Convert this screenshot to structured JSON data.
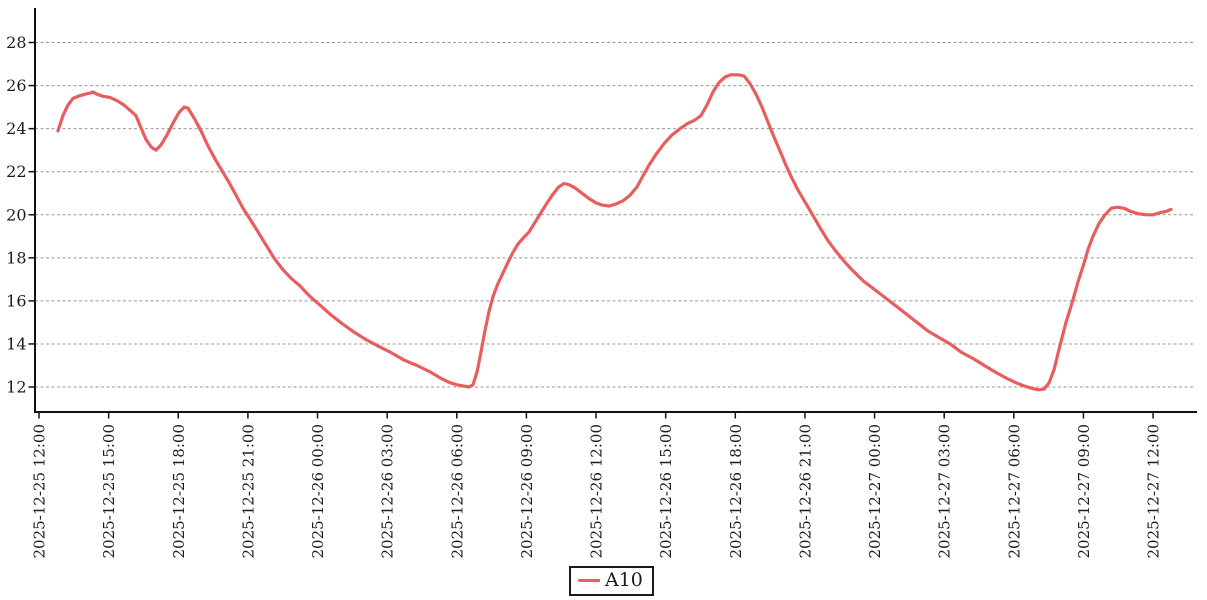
{
  "chart_data": {
    "type": "line",
    "title": "",
    "xlabel": "",
    "ylabel": "",
    "x_axis": {
      "unit": "datetime",
      "tick_interval": "3 hours",
      "tick_hours": [
        0,
        3,
        6,
        9,
        12,
        15,
        18,
        21,
        24,
        27,
        30,
        33,
        36,
        39,
        42,
        45,
        48
      ],
      "tick_labels": [
        "2025-12-25 12:00",
        "2025-12-25 15:00",
        "2025-12-25 18:00",
        "2025-12-25 21:00",
        "2025-12-26 00:00",
        "2025-12-26 03:00",
        "2025-12-26 06:00",
        "2025-12-26 09:00",
        "2025-12-26 12:00",
        "2025-12-26 15:00",
        "2025-12-26 18:00",
        "2025-12-26 21:00",
        "2025-12-27 00:00",
        "2025-12-27 03:00",
        "2025-12-27 06:00",
        "2025-12-27 09:00",
        "2025-12-27 12:00"
      ],
      "label_rotation_deg": 90,
      "range_hours": [
        -0.17,
        49.9
      ]
    },
    "y_axis": {
      "tick_values": [
        12,
        14,
        16,
        18,
        20,
        22,
        24,
        26,
        28
      ],
      "tick_labels": [
        "12",
        "14",
        "16",
        "18",
        "20",
        "22",
        "24",
        "26",
        "28"
      ],
      "range": [
        10.85,
        29.6
      ],
      "grid": "dashed horizontal"
    },
    "legend": {
      "position": "bottom-center",
      "bordered": true,
      "entries": [
        {
          "label": "A10",
          "color": "#e85d5d"
        }
      ]
    },
    "series": [
      {
        "name": "A10",
        "color": "#e85d5d",
        "points_format": "[hours since 2025-12-25 12:00, value]",
        "points": [
          [
            0.82,
            23.9
          ],
          [
            1.03,
            24.6
          ],
          [
            1.25,
            25.1
          ],
          [
            1.46,
            25.4
          ],
          [
            1.68,
            25.5
          ],
          [
            1.98,
            25.6
          ],
          [
            2.2,
            25.65
          ],
          [
            2.33,
            25.7
          ],
          [
            2.5,
            25.6
          ],
          [
            2.76,
            25.5
          ],
          [
            3.06,
            25.45
          ],
          [
            3.36,
            25.3
          ],
          [
            3.66,
            25.1
          ],
          [
            3.92,
            24.85
          ],
          [
            4.18,
            24.6
          ],
          [
            4.39,
            24.05
          ],
          [
            4.61,
            23.5
          ],
          [
            4.83,
            23.15
          ],
          [
            5.04,
            23.0
          ],
          [
            5.26,
            23.25
          ],
          [
            5.51,
            23.7
          ],
          [
            5.77,
            24.25
          ],
          [
            6.03,
            24.75
          ],
          [
            6.25,
            25.0
          ],
          [
            6.42,
            24.95
          ],
          [
            6.68,
            24.5
          ],
          [
            6.98,
            23.9
          ],
          [
            7.28,
            23.2
          ],
          [
            7.58,
            22.6
          ],
          [
            7.88,
            22.05
          ],
          [
            8.19,
            21.5
          ],
          [
            8.49,
            20.9
          ],
          [
            8.79,
            20.3
          ],
          [
            9.09,
            19.8
          ],
          [
            9.44,
            19.2
          ],
          [
            9.78,
            18.6
          ],
          [
            10.12,
            18.0
          ],
          [
            10.47,
            17.5
          ],
          [
            10.86,
            17.05
          ],
          [
            11.24,
            16.7
          ],
          [
            11.68,
            16.2
          ],
          [
            12.11,
            15.8
          ],
          [
            12.58,
            15.35
          ],
          [
            13.05,
            14.95
          ],
          [
            13.57,
            14.55
          ],
          [
            14.09,
            14.2
          ],
          [
            14.61,
            13.9
          ],
          [
            15.17,
            13.6
          ],
          [
            15.73,
            13.25
          ],
          [
            16.29,
            13.0
          ],
          [
            16.85,
            12.7
          ],
          [
            17.32,
            12.4
          ],
          [
            17.71,
            12.2
          ],
          [
            18.01,
            12.1
          ],
          [
            18.27,
            12.05
          ],
          [
            18.53,
            12.0
          ],
          [
            18.7,
            12.1
          ],
          [
            18.87,
            12.7
          ],
          [
            19.04,
            13.6
          ],
          [
            19.21,
            14.6
          ],
          [
            19.39,
            15.5
          ],
          [
            19.56,
            16.2
          ],
          [
            19.77,
            16.8
          ],
          [
            19.99,
            17.3
          ],
          [
            20.21,
            17.8
          ],
          [
            20.42,
            18.25
          ],
          [
            20.64,
            18.65
          ],
          [
            20.85,
            18.9
          ],
          [
            21.11,
            19.2
          ],
          [
            21.37,
            19.65
          ],
          [
            21.63,
            20.1
          ],
          [
            21.89,
            20.55
          ],
          [
            22.14,
            20.95
          ],
          [
            22.4,
            21.3
          ],
          [
            22.62,
            21.45
          ],
          [
            22.83,
            21.4
          ],
          [
            23.09,
            21.25
          ],
          [
            23.39,
            21.0
          ],
          [
            23.7,
            20.75
          ],
          [
            24.0,
            20.55
          ],
          [
            24.26,
            20.45
          ],
          [
            24.56,
            20.4
          ],
          [
            24.86,
            20.5
          ],
          [
            25.16,
            20.65
          ],
          [
            25.46,
            20.9
          ],
          [
            25.77,
            21.3
          ],
          [
            26.02,
            21.8
          ],
          [
            26.28,
            22.3
          ],
          [
            26.58,
            22.8
          ],
          [
            26.93,
            23.3
          ],
          [
            27.27,
            23.7
          ],
          [
            27.62,
            24.0
          ],
          [
            27.96,
            24.25
          ],
          [
            28.26,
            24.4
          ],
          [
            28.52,
            24.6
          ],
          [
            28.78,
            25.1
          ],
          [
            29.04,
            25.7
          ],
          [
            29.3,
            26.15
          ],
          [
            29.56,
            26.4
          ],
          [
            29.81,
            26.5
          ],
          [
            30.12,
            26.5
          ],
          [
            30.37,
            26.45
          ],
          [
            30.63,
            26.1
          ],
          [
            30.89,
            25.6
          ],
          [
            31.15,
            25.0
          ],
          [
            31.41,
            24.3
          ],
          [
            31.67,
            23.6
          ],
          [
            31.93,
            22.95
          ],
          [
            32.18,
            22.3
          ],
          [
            32.44,
            21.7
          ],
          [
            32.7,
            21.15
          ],
          [
            33.0,
            20.6
          ],
          [
            33.3,
            20.05
          ],
          [
            33.65,
            19.4
          ],
          [
            33.99,
            18.8
          ],
          [
            34.34,
            18.3
          ],
          [
            34.72,
            17.8
          ],
          [
            35.11,
            17.35
          ],
          [
            35.54,
            16.9
          ],
          [
            35.97,
            16.55
          ],
          [
            36.4,
            16.2
          ],
          [
            36.88,
            15.8
          ],
          [
            37.35,
            15.4
          ],
          [
            37.83,
            15.0
          ],
          [
            38.3,
            14.6
          ],
          [
            38.77,
            14.3
          ],
          [
            39.25,
            14.0
          ],
          [
            39.76,
            13.6
          ],
          [
            40.28,
            13.3
          ],
          [
            40.8,
            12.95
          ],
          [
            41.27,
            12.65
          ],
          [
            41.7,
            12.4
          ],
          [
            42.09,
            12.2
          ],
          [
            42.44,
            12.05
          ],
          [
            42.74,
            11.95
          ],
          [
            43.04,
            11.87
          ],
          [
            43.3,
            11.9
          ],
          [
            43.52,
            12.2
          ],
          [
            43.73,
            12.8
          ],
          [
            43.91,
            13.6
          ],
          [
            44.08,
            14.3
          ],
          [
            44.25,
            15.0
          ],
          [
            44.42,
            15.6
          ],
          [
            44.59,
            16.2
          ],
          [
            44.77,
            16.9
          ],
          [
            44.98,
            17.6
          ],
          [
            45.2,
            18.4
          ],
          [
            45.41,
            19.0
          ],
          [
            45.67,
            19.6
          ],
          [
            45.93,
            20.0
          ],
          [
            46.19,
            20.3
          ],
          [
            46.45,
            20.35
          ],
          [
            46.75,
            20.3
          ],
          [
            47.05,
            20.15
          ],
          [
            47.35,
            20.05
          ],
          [
            47.7,
            20.0
          ],
          [
            48.0,
            20.0
          ],
          [
            48.3,
            20.1
          ],
          [
            48.56,
            20.15
          ],
          [
            48.77,
            20.25
          ]
        ]
      }
    ]
  },
  "colors": {
    "series_red": "#e85d5d",
    "grid": "#999999",
    "axis": "#111111",
    "text": "#1c1c1c",
    "background": "#ffffff"
  }
}
